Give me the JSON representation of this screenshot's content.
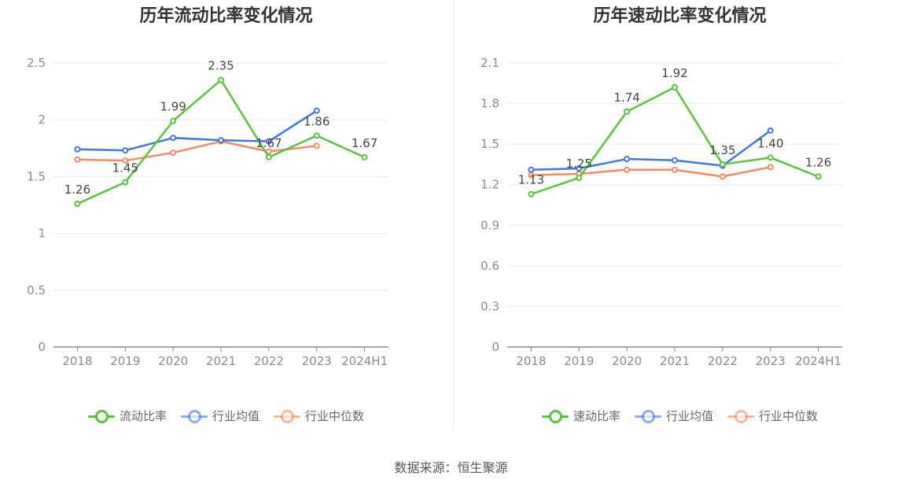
{
  "source_text": "数据来源：恒生聚源",
  "legend_colors": {
    "main": "#5ac33d",
    "avg": "#3f77e0",
    "median": "#f28a62"
  },
  "chart_data": [
    {
      "type": "line",
      "title": "历年流动比率变化情况",
      "categories": [
        "2018",
        "2019",
        "2020",
        "2021",
        "2022",
        "2023",
        "2024H1"
      ],
      "yticks": [
        "0",
        "0.5",
        "1",
        "1.5",
        "2",
        "2.5"
      ],
      "ylim": [
        0,
        2.5
      ],
      "grid": true,
      "legend_position": "bottom",
      "series": [
        {
          "name": "流动比率",
          "color": "#5ac33d",
          "values": [
            1.26,
            1.45,
            1.99,
            2.35,
            1.67,
            1.86,
            1.67
          ],
          "labels": [
            "1.26",
            "1.45",
            "1.99",
            "2.35",
            "1.67",
            "1.86",
            "1.67"
          ]
        },
        {
          "name": "行业均值",
          "color": "#3f77e0",
          "values": [
            1.74,
            1.73,
            1.84,
            1.82,
            1.81,
            2.08,
            null
          ]
        },
        {
          "name": "行业中位数",
          "color": "#f28a62",
          "values": [
            1.65,
            1.64,
            1.71,
            1.81,
            1.72,
            1.77,
            null
          ]
        }
      ]
    },
    {
      "type": "line",
      "title": "历年速动比率变化情况",
      "categories": [
        "2018",
        "2019",
        "2020",
        "2021",
        "2022",
        "2023",
        "2024H1"
      ],
      "yticks": [
        "0",
        "0.3",
        "0.6",
        "0.9",
        "1.2",
        "1.5",
        "1.8",
        "2.1"
      ],
      "ylim": [
        0,
        2.1
      ],
      "grid": true,
      "legend_position": "bottom",
      "series": [
        {
          "name": "速动比率",
          "color": "#5ac33d",
          "values": [
            1.13,
            1.25,
            1.74,
            1.92,
            1.35,
            1.4,
            1.26
          ],
          "labels": [
            "1.13",
            "1.25",
            "1.74",
            "1.92",
            "1.35",
            "1.40",
            "1.26"
          ]
        },
        {
          "name": "行业均值",
          "color": "#3f77e0",
          "values": [
            1.31,
            1.32,
            1.39,
            1.38,
            1.34,
            1.6,
            null
          ]
        },
        {
          "name": "行业中位数",
          "color": "#f28a62",
          "values": [
            1.27,
            1.28,
            1.31,
            1.31,
            1.26,
            1.33,
            null
          ]
        }
      ]
    }
  ]
}
